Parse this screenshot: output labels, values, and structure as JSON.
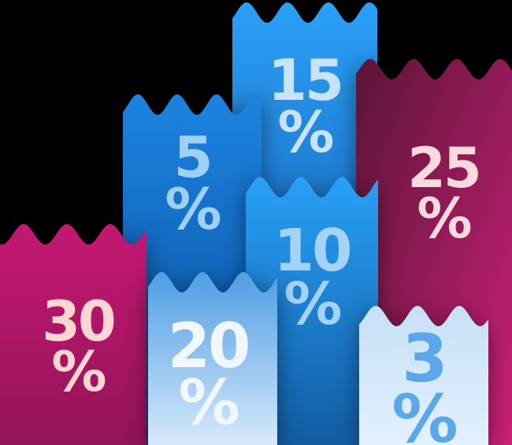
{
  "background_color": "#000000",
  "percent_sign": "%",
  "banners": [
    {
      "id": "15",
      "value": "15",
      "text_color": "#C8E4FB",
      "fill_top": "#2BA0F8",
      "fill_bottom": "#0F4E9E"
    },
    {
      "id": "5",
      "value": "5",
      "text_color": "#9FD0F6",
      "fill_top": "#1B84E0",
      "fill_bottom": "#0C4C9C"
    },
    {
      "id": "25",
      "value": "25",
      "text_color": "#FBD9DC",
      "fill_top": "#5A1538",
      "fill_bottom": "#CC2078"
    },
    {
      "id": "30",
      "value": "30",
      "text_color": "#FFD7D0",
      "fill_top": "#C41873",
      "fill_bottom": "#941458"
    },
    {
      "id": "10",
      "value": "10",
      "text_color": "#A5D3F7",
      "fill_top": "#28A0F7",
      "fill_bottom": "#135CA3"
    },
    {
      "id": "20",
      "value": "20",
      "text_color": "#F0F7FE",
      "fill_top": "#4F9EE4",
      "fill_bottom": "#D7E9FB"
    },
    {
      "id": "3",
      "value": "3",
      "text_color": "#5BA7E8",
      "fill_top": "#C6E0F7",
      "fill_bottom": "#E2F1FE"
    }
  ]
}
